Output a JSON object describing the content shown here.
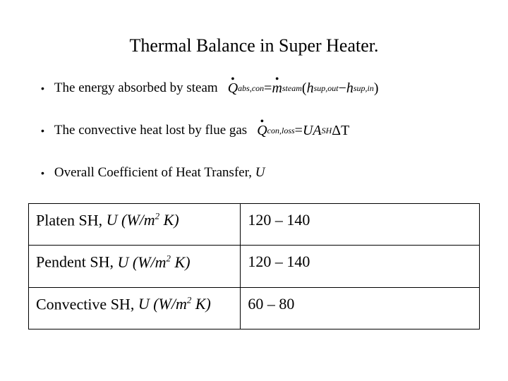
{
  "title": "Thermal Balance in Super Heater.",
  "bullets": {
    "b1_text": "The energy absorbed by steam",
    "b2_text": "The convective heat lost by flue gas",
    "b3_prefix": "Overall Coefficient of Heat Transfer, ",
    "b3_symbol": "U"
  },
  "eq1": {
    "Q": "Q",
    "Q_sub": "abs,con",
    "eq": " = ",
    "m": "m",
    "m_sub": "steam",
    "lp": "(",
    "h1": "h",
    "h1_sub": "sup,out",
    "minus": " − ",
    "h2": "h",
    "h2_sub": "sup,in",
    "rp": ")"
  },
  "eq2": {
    "Q": "Q",
    "Q_sub": "con,loss",
    "eq": " = ",
    "UA": "UA",
    "A_sub": "SH",
    "dT": "ΔT"
  },
  "table": {
    "rows": [
      {
        "label_prefix": "Platen SH, ",
        "symbol": "U",
        "unit_open": " (W/m",
        "unit_close": " K)",
        "value": "120 – 140"
      },
      {
        "label_prefix": "Pendent SH, ",
        "symbol": "U",
        "unit_open": " (W/m",
        "unit_close": " K)",
        "value": "120 – 140"
      },
      {
        "label_prefix": "Convective SH, ",
        "symbol": "U",
        "unit_open": " (W/m",
        "unit_close": " K)",
        "value": "60 – 80"
      }
    ]
  },
  "style": {
    "bg": "#ffffff",
    "fg": "#000000",
    "title_fontsize": 26,
    "bullet_fontsize": 19,
    "table_fontsize": 22,
    "border_color": "#000000"
  }
}
